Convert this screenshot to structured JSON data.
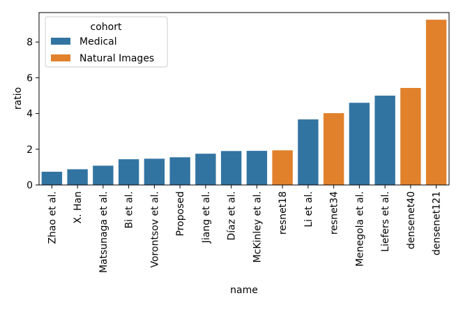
{
  "chart_data": {
    "type": "bar",
    "x_label": "name",
    "y_label": "ratio",
    "categories": [
      "Zhao et al.",
      "X. Han",
      "Matsunaga et al.",
      "Bi et al.",
      "Vorontsov et al.",
      "Proposed",
      "Jiang et al.",
      "Díaz et al.",
      "McKinley et al.",
      "resnet18",
      "Li et al.",
      "resnet34",
      "Menegola et al.",
      "Liefers et al.",
      "densenet40",
      "densenet121"
    ],
    "legend_title": "cohort",
    "series": [
      {
        "name": "Medical",
        "color": "#3274a1",
        "values": [
          0.74,
          0.88,
          1.08,
          1.44,
          1.47,
          1.55,
          1.75,
          1.9,
          1.91,
          null,
          3.67,
          null,
          4.6,
          5.0,
          null,
          null
        ]
      },
      {
        "name": "Natural Images",
        "color": "#e1812c",
        "values": [
          null,
          null,
          null,
          null,
          null,
          null,
          null,
          null,
          null,
          1.94,
          null,
          4.02,
          null,
          null,
          5.43,
          9.25
        ]
      }
    ],
    "ylim": [
      0,
      9.65
    ],
    "yticks": [
      0,
      2,
      4,
      6,
      8
    ],
    "legend": "upper left"
  }
}
